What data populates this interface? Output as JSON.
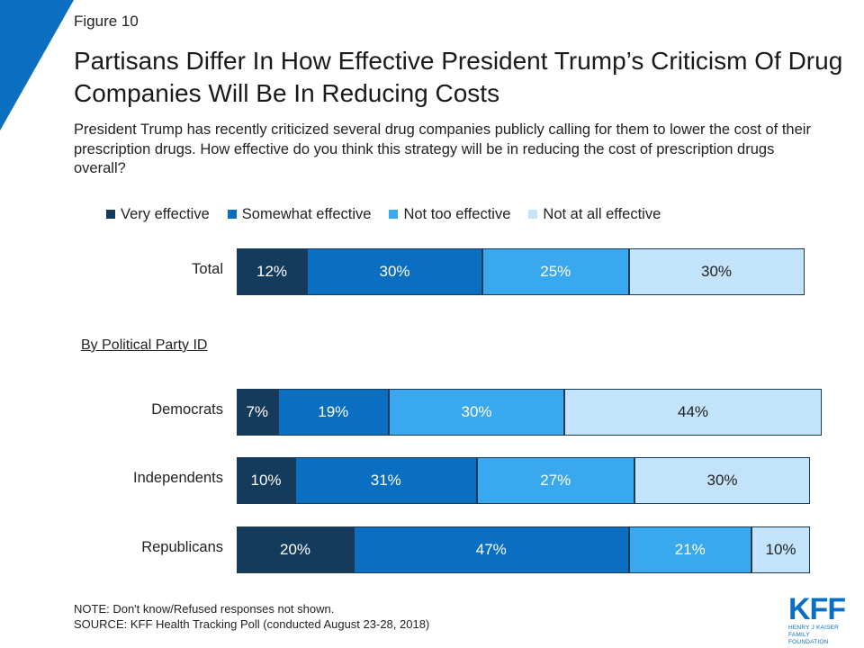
{
  "figure_label": "Figure 10",
  "title": "Partisans Differ In How Effective President Trump’s Criticism Of Drug Companies Will Be In Reducing Costs",
  "subtitle": "President Trump has recently criticized several drug companies publicly calling for them to lower the cost of their prescription drugs. How effective do you think this strategy will be in reducing the cost of prescription drugs overall?",
  "section_label": "By Political Party ID",
  "note": "NOTE: Don't know/Refused responses not shown.",
  "source": "SOURCE: KFF Health Tracking Poll (conducted August 23-28, 2018)",
  "logo": {
    "main": "KFF",
    "line1": "HENRY J KAISER",
    "line2": "FAMILY FOUNDATION"
  },
  "colors": {
    "accent": "#0a6fc0",
    "very": "#143a5c",
    "somewhat": "#0a6fc0",
    "not_too": "#3aa8ee",
    "not_at_all": "#c2e3fa"
  },
  "chart_data": {
    "type": "bar",
    "orientation": "horizontal",
    "stacked": true,
    "categories": [
      "Total",
      "Democrats",
      "Independents",
      "Republicans"
    ],
    "series": [
      {
        "name": "Very effective",
        "values": [
          12,
          7,
          10,
          20
        ],
        "labels": [
          "12%",
          "7%",
          "10%",
          "20%"
        ]
      },
      {
        "name": "Somewhat effective",
        "values": [
          30,
          19,
          31,
          47
        ],
        "labels": [
          "30%",
          "19%",
          "31%",
          "47%"
        ]
      },
      {
        "name": "Not too effective",
        "values": [
          25,
          30,
          27,
          21
        ],
        "labels": [
          "25%",
          "30%",
          "27%",
          "21%"
        ]
      },
      {
        "name": "Not at all effective",
        "values": [
          30,
          44,
          30,
          10
        ],
        "labels": [
          "30%",
          "44%",
          "30%",
          "10%"
        ]
      }
    ],
    "xlim": [
      0,
      100
    ],
    "legend": "top",
    "grid": false
  }
}
